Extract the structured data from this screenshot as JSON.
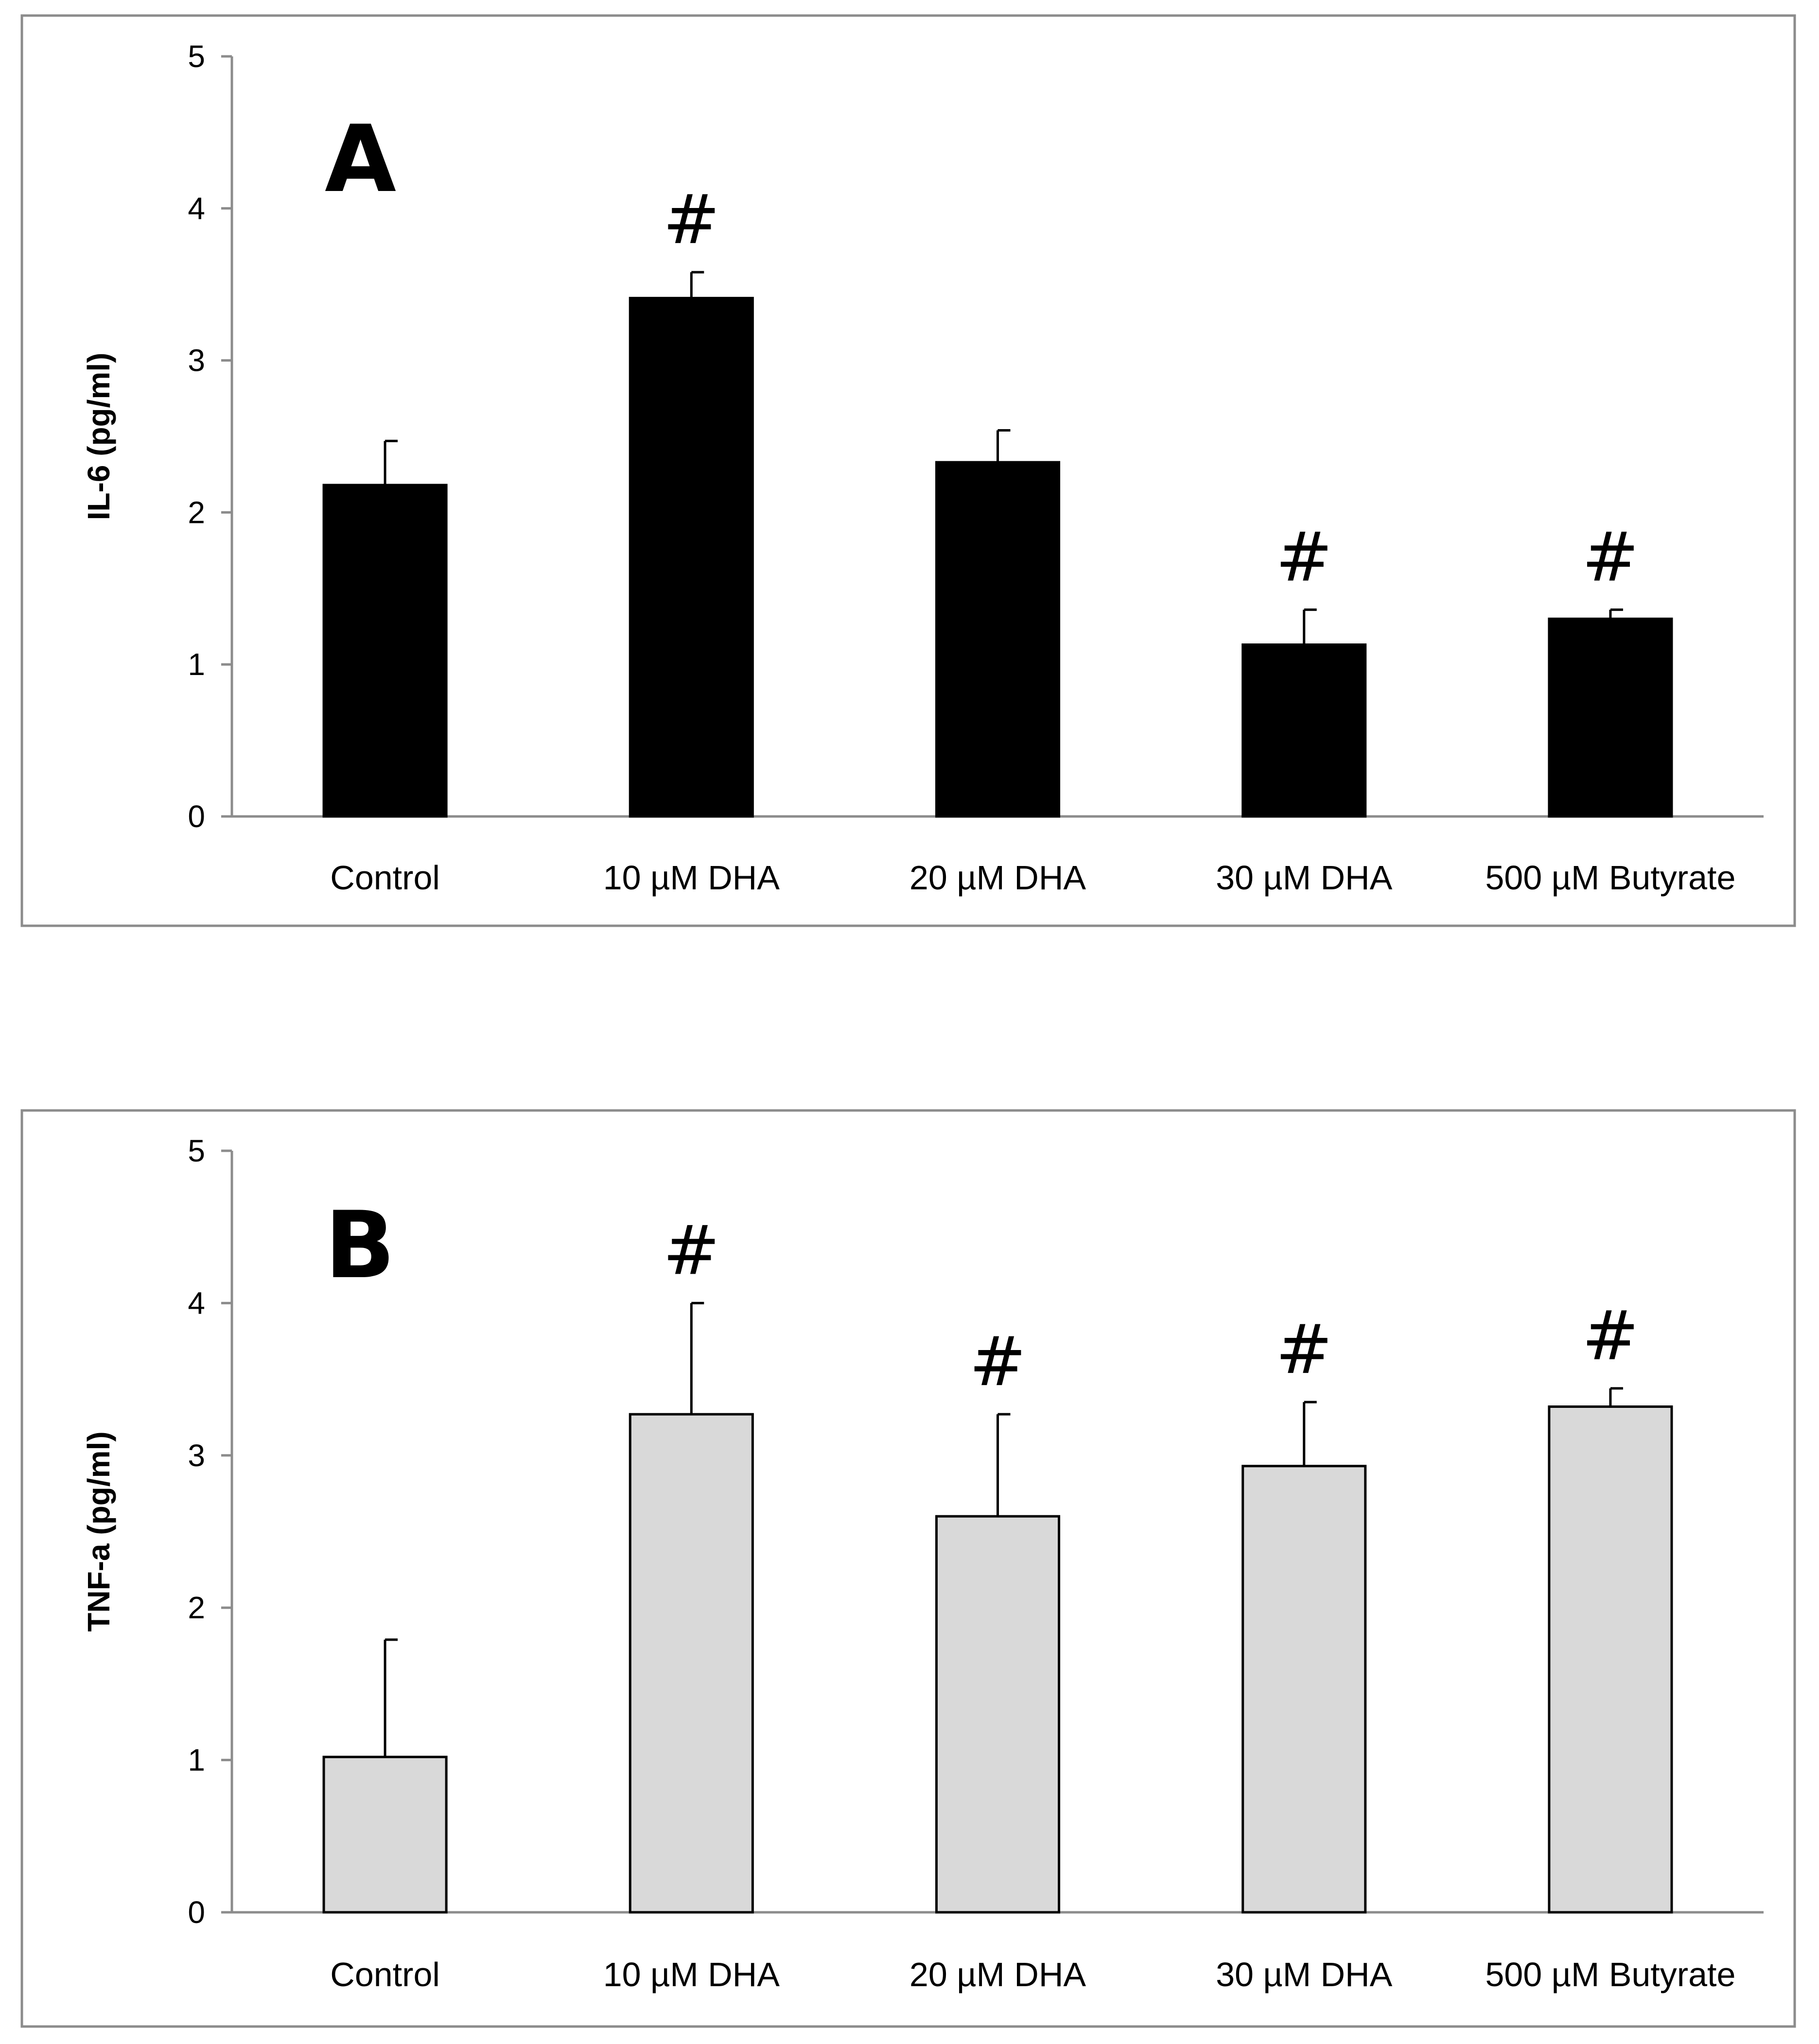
{
  "chart_data": [
    {
      "type": "bar",
      "panel": "A",
      "ylabel": "IL-6 (pg/ml)",
      "ylim": [
        0,
        5
      ],
      "yticks": [
        0,
        1,
        2,
        3,
        4,
        5
      ],
      "categories": [
        "Control",
        "10 µM DHA",
        "20 µM DHA",
        "30 µM DHA",
        "500 µM Butyrate"
      ],
      "values": [
        2.18,
        3.41,
        2.33,
        1.13,
        1.3
      ],
      "errors": [
        0.29,
        0.17,
        0.21,
        0.23,
        0.06
      ],
      "annotations": [
        "",
        "#",
        "",
        "#",
        "#"
      ],
      "bar_color": "#000000"
    },
    {
      "type": "bar",
      "panel": "B",
      "ylabel": "TNF-a (pg/ml)",
      "ylim": [
        0,
        5
      ],
      "yticks": [
        0,
        1,
        2,
        3,
        4,
        5
      ],
      "categories": [
        "Control",
        "10 µM DHA",
        "20 µM DHA",
        "30 µM DHA",
        "500 µM Butyrate"
      ],
      "values": [
        1.02,
        3.27,
        2.6,
        2.93,
        3.32
      ],
      "errors": [
        0.77,
        0.73,
        0.67,
        0.42,
        0.12
      ],
      "annotations": [
        "",
        "#",
        "#",
        "#",
        "#"
      ],
      "bar_color": "#d9d9d9"
    }
  ]
}
